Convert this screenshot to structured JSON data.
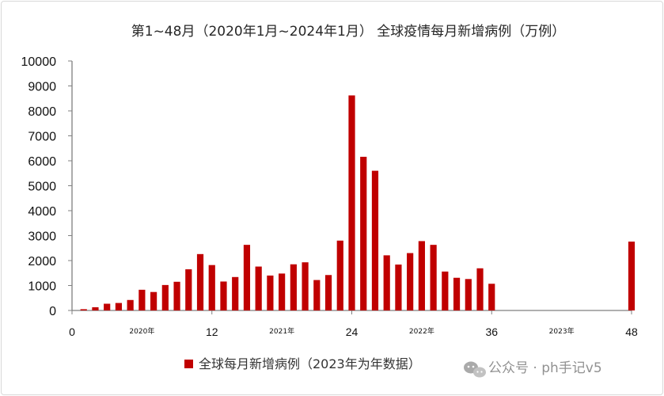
{
  "chart_data": {
    "type": "bar",
    "title": "第1~48月（2020年1月~2024年1月） 全球疫情每月新增病例（万例）",
    "xlabel": "",
    "ylabel": "",
    "ylim": [
      0,
      10000
    ],
    "yticks": [
      0,
      1000,
      2000,
      3000,
      4000,
      5000,
      6000,
      7000,
      8000,
      9000,
      10000
    ],
    "xlim": [
      0,
      48
    ],
    "xticks": [
      0,
      12,
      24,
      36,
      48
    ],
    "year_labels": [
      {
        "x": 6,
        "text": "2020年"
      },
      {
        "x": 18,
        "text": "2021年"
      },
      {
        "x": 30,
        "text": "2022年"
      },
      {
        "x": 42,
        "text": "2023年"
      }
    ],
    "grid": false,
    "legend_position": "bottom",
    "series": [
      {
        "name": "全球每月新增病例（2023年为年数据）",
        "color": "#c00000",
        "x": [
          1,
          2,
          3,
          4,
          5,
          6,
          7,
          8,
          9,
          10,
          11,
          12,
          13,
          14,
          15,
          16,
          17,
          18,
          19,
          20,
          21,
          22,
          23,
          24,
          25,
          26,
          27,
          28,
          29,
          30,
          31,
          32,
          33,
          34,
          35,
          36,
          48
        ],
        "values": [
          50,
          130,
          270,
          300,
          420,
          830,
          740,
          1020,
          1150,
          1650,
          2260,
          1820,
          1160,
          1340,
          2630,
          1760,
          1400,
          1480,
          1850,
          1930,
          1220,
          1420,
          2800,
          8620,
          6160,
          5600,
          2210,
          1840,
          2300,
          2780,
          2630,
          1560,
          1310,
          1260,
          1690,
          1070,
          2760
        ]
      }
    ]
  },
  "watermark": {
    "icon": "wechat-icon",
    "text": "公众号 · ph手记v5"
  }
}
